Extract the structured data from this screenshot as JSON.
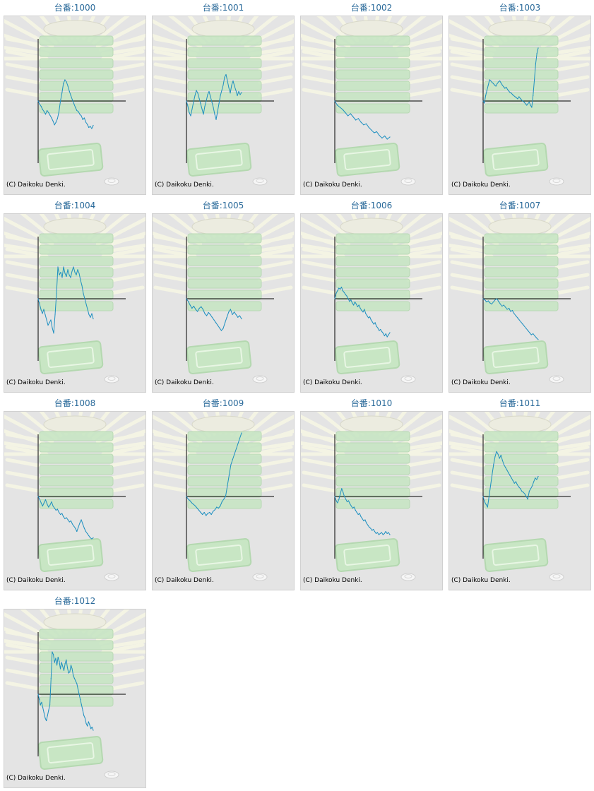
{
  "colors": {
    "line": "#1e8fc0",
    "axis": "#000000",
    "title": "#2a6a9a",
    "panel_bg": "#e4e4e4",
    "panel_border": "#d0d0d0",
    "background_art": "#c8e6c4",
    "rays": "#f4f4e4"
  },
  "background_icons": [
    "sunburst-rays",
    "stacked-tray-tower",
    "tray-icon",
    "coin-icon"
  ],
  "chart_data": [
    {
      "type": "line",
      "title": "台番:1000",
      "copyright": "(C) Daikoku Denki.",
      "y": [
        0,
        -6,
        -10,
        -16,
        -20,
        -25,
        -18,
        -22,
        -27,
        -32,
        -38,
        -45,
        -40,
        -33,
        -20,
        0,
        15,
        33,
        40,
        36,
        28,
        18,
        10,
        2,
        -5,
        -12,
        -18,
        -20,
        -25,
        -28,
        -35,
        -32,
        -40,
        -44,
        -50,
        -48,
        -52,
        -46
      ]
    },
    {
      "type": "line",
      "title": "台番:1001",
      "copyright": "(C) Daikoku Denki.",
      "y": [
        0,
        -10,
        -22,
        -28,
        -15,
        -2,
        10,
        20,
        15,
        5,
        -5,
        -15,
        -25,
        -10,
        0,
        12,
        18,
        8,
        -2,
        -12,
        -25,
        -35,
        -20,
        -5,
        10,
        20,
        30,
        45,
        50,
        38,
        25,
        15,
        30,
        38,
        28,
        20,
        10,
        18,
        12,
        16
      ]
    },
    {
      "type": "line",
      "title": "台番:1002",
      "copyright": "(C) Daikoku Denki.",
      "y": [
        0,
        -8,
        -12,
        -16,
        -22,
        -28,
        -24,
        -30,
        -36,
        -33,
        -40,
        -45,
        -43,
        -50,
        -55,
        -60,
        -58,
        -65,
        -70,
        -66,
        -72,
        -68
      ]
    },
    {
      "type": "line",
      "title": "台番:1003",
      "copyright": "(C) Daikoku Denki.",
      "y": [
        0,
        -4,
        10,
        20,
        30,
        40,
        38,
        35,
        33,
        30,
        28,
        33,
        36,
        38,
        34,
        30,
        27,
        24,
        26,
        22,
        19,
        16,
        15,
        12,
        10,
        8,
        6,
        4,
        8,
        5,
        2,
        0,
        -2,
        -5,
        -8,
        -5,
        -2,
        -8,
        -12,
        10,
        40,
        70,
        90,
        100
      ]
    },
    {
      "type": "line",
      "title": "台番:1004",
      "copyright": "(C) Daikoku Denki.",
      "y": [
        0,
        -10,
        -20,
        -28,
        -20,
        -30,
        -40,
        -50,
        -45,
        -40,
        -55,
        -65,
        -30,
        10,
        60,
        45,
        50,
        40,
        60,
        48,
        42,
        55,
        45,
        40,
        52,
        60,
        50,
        45,
        55,
        48,
        35,
        25,
        10,
        0,
        -10,
        -20,
        -30,
        -35,
        -28,
        -38
      ]
    },
    {
      "type": "line",
      "title": "台番:1005",
      "copyright": "(C) Daikoku Denki.",
      "y": [
        0,
        -5,
        -12,
        -18,
        -14,
        -20,
        -24,
        -18,
        -15,
        -20,
        -28,
        -32,
        -26,
        -30,
        -35,
        -40,
        -45,
        -50,
        -55,
        -60,
        -56,
        -45,
        -35,
        -25,
        -20,
        -30,
        -25,
        -30,
        -35,
        -32,
        -38
      ]
    },
    {
      "type": "line",
      "title": "台番:1006",
      "copyright": "(C) Daikoku Denki.",
      "y": [
        0,
        10,
        15,
        20,
        18,
        22,
        15,
        12,
        8,
        5,
        0,
        -5,
        -2,
        -8,
        -12,
        -6,
        -10,
        -15,
        -12,
        -18,
        -22,
        -25,
        -20,
        -28,
        -32,
        -36,
        -34,
        -40,
        -44,
        -48,
        -45,
        -52,
        -55,
        -60,
        -58,
        -62,
        -65,
        -70,
        -66,
        -72,
        -68,
        -64
      ]
    },
    {
      "type": "line",
      "title": "台番:1007",
      "copyright": "(C) Daikoku Denki.",
      "y": [
        0,
        -2,
        -6,
        -4,
        -8,
        -10,
        -6,
        -2,
        0,
        -5,
        -10,
        -14,
        -12,
        -16,
        -20,
        -18,
        -24,
        -22,
        -28,
        -32,
        -36,
        -40,
        -44,
        -48,
        -52,
        -56,
        -60,
        -64,
        -68,
        -66,
        -70,
        -74,
        -77
      ]
    },
    {
      "type": "line",
      "title": "台番:1008",
      "copyright": "(C) Daikoku Denki.",
      "y": [
        0,
        -5,
        -12,
        -18,
        -12,
        -6,
        -14,
        -20,
        -16,
        -10,
        -18,
        -22,
        -26,
        -24,
        -30,
        -34,
        -32,
        -38,
        -42,
        -40,
        -44,
        -48,
        -46,
        -52,
        -56,
        -60,
        -66,
        -58,
        -50,
        -44,
        -52,
        -60,
        -66,
        -70,
        -74,
        -78,
        -80,
        -78
      ]
    },
    {
      "type": "line",
      "title": "台番:1009",
      "copyright": "(C) Daikoku Denki.",
      "y": [
        0,
        -5,
        -8,
        -12,
        -15,
        -18,
        -22,
        -26,
        -30,
        -34,
        -30,
        -36,
        -32,
        -30,
        -34,
        -28,
        -25,
        -20,
        -22,
        -18,
        -10,
        -5,
        0,
        20,
        40,
        60,
        70,
        80,
        90,
        100,
        110,
        120
      ]
    },
    {
      "type": "line",
      "title": "台番:1010",
      "copyright": "(C) Daikoku Denki.",
      "y": [
        0,
        -8,
        -12,
        -5,
        5,
        15,
        8,
        0,
        -5,
        -10,
        -8,
        -14,
        -18,
        -22,
        -20,
        -26,
        -30,
        -34,
        -32,
        -38,
        -42,
        -46,
        -44,
        -50,
        -54,
        -58,
        -60,
        -64,
        -62,
        -66,
        -70,
        -68,
        -72,
        -70,
        -68,
        -72,
        -70,
        -66,
        -70,
        -68,
        -72
      ]
    },
    {
      "type": "line",
      "title": "台番:1011",
      "copyright": "(C) Daikoku Denki.",
      "y": [
        0,
        -10,
        -15,
        -20,
        0,
        20,
        40,
        60,
        75,
        85,
        80,
        72,
        78,
        68,
        60,
        55,
        50,
        45,
        40,
        35,
        30,
        25,
        28,
        22,
        18,
        15,
        10,
        8,
        5,
        0,
        -5,
        10,
        15,
        20,
        28,
        35,
        32,
        38
      ]
    },
    {
      "type": "line",
      "title": "台番:1012",
      "copyright": "(C) Daikoku Denki.",
      "y": [
        0,
        -10,
        -20,
        -15,
        -25,
        -35,
        -45,
        -50,
        -40,
        -30,
        -20,
        30,
        80,
        75,
        60,
        68,
        55,
        70,
        62,
        48,
        60,
        52,
        45,
        58,
        65,
        50,
        40,
        42,
        55,
        48,
        35,
        30,
        25,
        20,
        10,
        0,
        -10,
        -20,
        -30,
        -40,
        -45,
        -55,
        -60,
        -52,
        -58,
        -65,
        -62,
        -68
      ]
    }
  ]
}
